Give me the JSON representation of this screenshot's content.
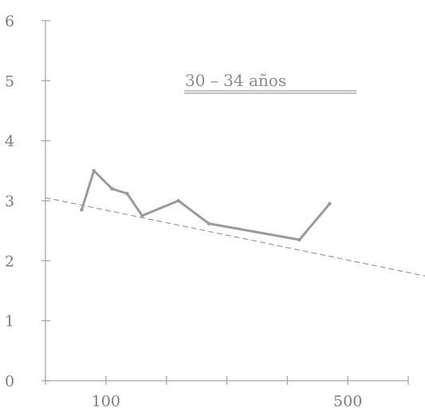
{
  "chart_data": {
    "type": "line",
    "title": "",
    "xlabel": "",
    "ylabel": "",
    "annotation": "30 – 34 años",
    "xlim": [
      0,
      600
    ],
    "ylim": [
      0,
      6
    ],
    "x_ticks": [
      0,
      100,
      200,
      300,
      400,
      500,
      600
    ],
    "x_tick_labels": [
      {
        "x": 100,
        "label": "100"
      },
      {
        "x": 500,
        "label": "500"
      }
    ],
    "y_ticks": [
      0,
      1,
      2,
      3,
      4,
      5,
      6
    ],
    "y_tick_labels": [
      "0",
      "1",
      "2",
      "3",
      "4",
      "5",
      "6"
    ],
    "grid": false,
    "series": [
      {
        "style": "solid",
        "color": "#9a9a9a",
        "x": [
          60,
          80,
          110,
          135,
          160,
          220,
          270,
          420,
          470
        ],
        "y": [
          2.85,
          3.5,
          3.2,
          3.12,
          2.75,
          3.0,
          2.62,
          2.35,
          2.95
        ]
      },
      {
        "style": "dashed",
        "color": "#9a9a9a",
        "x": [
          0,
          640
        ],
        "y": [
          3.05,
          1.72
        ]
      }
    ]
  }
}
